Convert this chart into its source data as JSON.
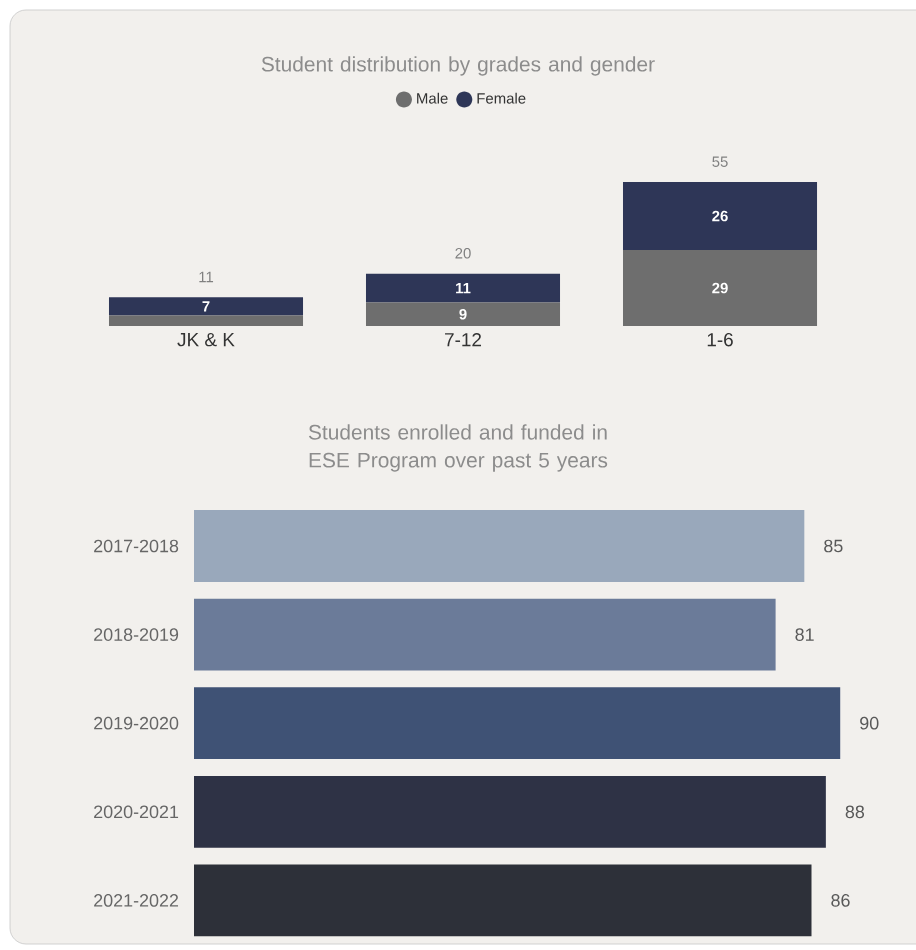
{
  "chart_data": [
    {
      "type": "bar",
      "title": "Student distribution by grades and gender",
      "categories": [
        "JK & K",
        "7-12",
        "1-6"
      ],
      "stacked": true,
      "legend": "top",
      "series": [
        {
          "name": "Male",
          "color": "#6e6e6e",
          "values": [
            4,
            9,
            29
          ],
          "value_labels": [
            null,
            "9",
            "29"
          ]
        },
        {
          "name": "Female",
          "color": "#2e3657",
          "values": [
            7,
            11,
            26
          ],
          "value_labels": [
            "7",
            "11",
            "26"
          ]
        }
      ],
      "totals": [
        "11",
        "20",
        "55"
      ]
    },
    {
      "type": "bar",
      "orientation": "horizontal",
      "title": "Students enrolled and funded in ESE Program over past 5 years",
      "categories": [
        "2017-2018",
        "2018-2019",
        "2019-2020",
        "2020-2021",
        "2021-2022"
      ],
      "values": [
        85,
        81,
        90,
        88,
        86
      ],
      "colors": [
        "#99a8bb",
        "#6b7b99",
        "#3f5275",
        "#2e3245",
        "#2d3039"
      ],
      "data_labels": true
    }
  ]
}
